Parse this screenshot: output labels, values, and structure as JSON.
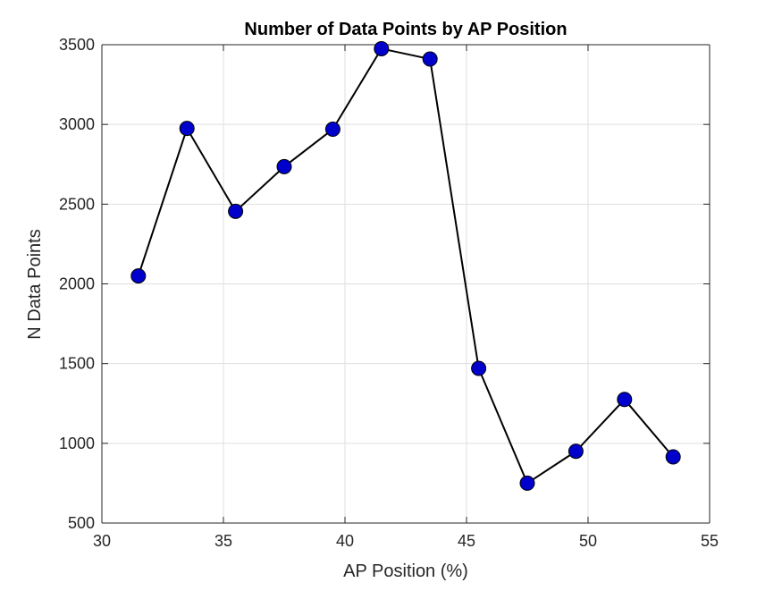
{
  "chart_data": {
    "type": "line",
    "title": "Number of Data Points by AP Position",
    "xlabel": "AP Position (%)",
    "ylabel": "N Data Points",
    "xlim": [
      30,
      55
    ],
    "ylim": [
      500,
      3500
    ],
    "xticks": [
      30,
      35,
      40,
      45,
      50,
      55
    ],
    "yticks": [
      500,
      1000,
      1500,
      2000,
      2500,
      3000,
      3500
    ],
    "grid": true,
    "legend": "none",
    "series": [
      {
        "x": [
          31.5,
          33.5,
          35.5,
          37.5,
          39.5,
          41.5,
          43.5,
          45.5,
          47.5,
          49.5,
          51.5,
          53.5
        ],
        "y": [
          2050,
          2975,
          2455,
          2735,
          2970,
          3475,
          3410,
          1470,
          750,
          950,
          1275,
          915
        ],
        "line_color": "#000000",
        "marker": "circle",
        "marker_color": "#0000cc",
        "marker_edge_color": "#000000"
      }
    ]
  }
}
